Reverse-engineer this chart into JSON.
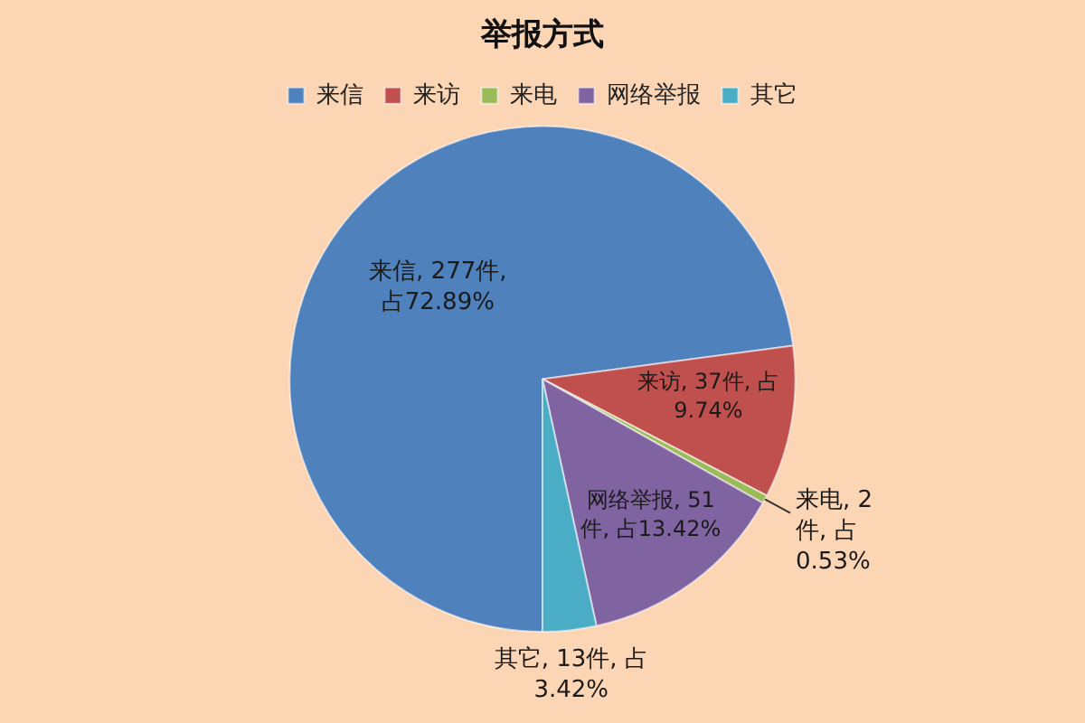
{
  "chart_data": {
    "type": "pie",
    "title": "举报方式",
    "categories": [
      "来信",
      "来访",
      "来电",
      "网络举报",
      "其它"
    ],
    "values": [
      277,
      37,
      2,
      51,
      13
    ],
    "colors": [
      "#4f81bd",
      "#c0504d",
      "#9bbb59",
      "#8064a2",
      "#4bacc6"
    ],
    "value_labels": [
      "来信, 277件, 占72.89%",
      "来访, 37件, 占9.74%",
      "来电, 2件, 占0.53%",
      "网络举报, 51件, 占13.42%",
      "其它, 13件, 占3.42%"
    ],
    "legend": "top"
  }
}
